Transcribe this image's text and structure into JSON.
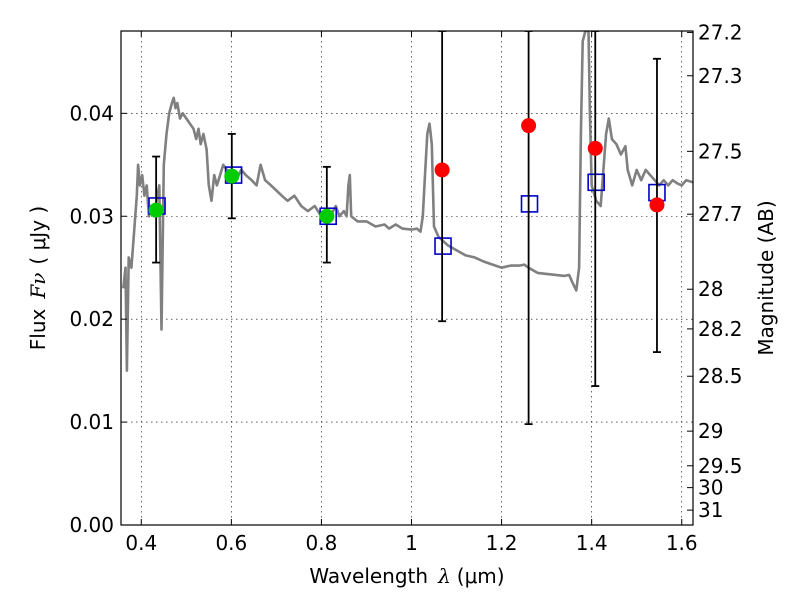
{
  "chart_data": {
    "type": "scatter",
    "xlabel_text": "Wavelength",
    "xlabel_symbol": "λ",
    "xlabel_unit": "(μm)",
    "ylabel_text": "Flux",
    "ylabel_symbol": "Fν",
    "ylabel_unit": "( μJy )",
    "y2label": "Magnitude (AB)",
    "xlim": [
      0.355,
      1.625
    ],
    "ylim": [
      0.0,
      0.048
    ],
    "grid": true,
    "x_ticks": [
      {
        "value": 0.4,
        "label": "0.4"
      },
      {
        "value": 0.6,
        "label": "0.6"
      },
      {
        "value": 0.8,
        "label": "0.8"
      },
      {
        "value": 1.0,
        "label": "1"
      },
      {
        "value": 1.2,
        "label": "1.2"
      },
      {
        "value": 1.4,
        "label": "1.4"
      },
      {
        "value": 1.6,
        "label": "1.6"
      }
    ],
    "y_ticks": [
      {
        "value": 0.0,
        "label": "0.00"
      },
      {
        "value": 0.01,
        "label": "0.01"
      },
      {
        "value": 0.02,
        "label": "0.02"
      },
      {
        "value": 0.03,
        "label": "0.03"
      },
      {
        "value": 0.04,
        "label": "0.04"
      }
    ],
    "y2_ticks": [
      {
        "value": 27.2,
        "label": "27.2"
      },
      {
        "value": 27.3,
        "label": "27.3"
      },
      {
        "value": 27.5,
        "label": "27.5"
      },
      {
        "value": 27.7,
        "label": "27.7"
      },
      {
        "value": 28.0,
        "label": "28"
      },
      {
        "value": 28.2,
        "label": "28.2"
      },
      {
        "value": 28.5,
        "label": "28.5"
      },
      {
        "value": 29.0,
        "label": "29"
      },
      {
        "value": 29.5,
        "label": "29.5"
      },
      {
        "value": 30.0,
        "label": "30"
      },
      {
        "value": 31.0,
        "label": "31"
      }
    ],
    "colors": {
      "sed": "#808080",
      "detections": "#00cc00",
      "upper_points": "#ff0000",
      "model_boxes": "#0000cc",
      "errorbar": "#000000"
    },
    "series": [
      {
        "type": "line",
        "points": [
          [
            0.36,
            0.023
          ],
          [
            0.365,
            0.025
          ],
          [
            0.368,
            0.015
          ],
          [
            0.372,
            0.026
          ],
          [
            0.378,
            0.025
          ],
          [
            0.385,
            0.029
          ],
          [
            0.39,
            0.032
          ],
          [
            0.393,
            0.035
          ],
          [
            0.397,
            0.033
          ],
          [
            0.402,
            0.034
          ],
          [
            0.407,
            0.032
          ],
          [
            0.412,
            0.033
          ],
          [
            0.417,
            0.03
          ],
          [
            0.422,
            0.031
          ],
          [
            0.428,
            0.03
          ],
          [
            0.434,
            0.0315
          ],
          [
            0.44,
            0.033
          ],
          [
            0.445,
            0.019
          ],
          [
            0.45,
            0.035
          ],
          [
            0.456,
            0.038
          ],
          [
            0.462,
            0.04
          ],
          [
            0.468,
            0.041
          ],
          [
            0.472,
            0.0415
          ],
          [
            0.476,
            0.0405
          ],
          [
            0.48,
            0.041
          ],
          [
            0.486,
            0.0395
          ],
          [
            0.492,
            0.04
          ],
          [
            0.5,
            0.0395
          ],
          [
            0.508,
            0.039
          ],
          [
            0.516,
            0.0385
          ],
          [
            0.522,
            0.0375
          ],
          [
            0.527,
            0.0385
          ],
          [
            0.532,
            0.037
          ],
          [
            0.538,
            0.038
          ],
          [
            0.545,
            0.0365
          ],
          [
            0.55,
            0.033
          ],
          [
            0.556,
            0.0315
          ],
          [
            0.562,
            0.034
          ],
          [
            0.568,
            0.033
          ],
          [
            0.575,
            0.034
          ],
          [
            0.582,
            0.035
          ],
          [
            0.59,
            0.0345
          ],
          [
            0.6,
            0.034
          ],
          [
            0.61,
            0.0335
          ],
          [
            0.622,
            0.0345
          ],
          [
            0.632,
            0.034
          ],
          [
            0.645,
            0.0335
          ],
          [
            0.656,
            0.033
          ],
          [
            0.665,
            0.035
          ],
          [
            0.675,
            0.0335
          ],
          [
            0.688,
            0.033
          ],
          [
            0.7,
            0.0325
          ],
          [
            0.712,
            0.032
          ],
          [
            0.725,
            0.0315
          ],
          [
            0.74,
            0.032
          ],
          [
            0.755,
            0.031
          ],
          [
            0.77,
            0.0305
          ],
          [
            0.785,
            0.031
          ],
          [
            0.8,
            0.03
          ],
          [
            0.81,
            0.0305
          ],
          [
            0.82,
            0.03
          ],
          [
            0.832,
            0.031
          ],
          [
            0.84,
            0.03
          ],
          [
            0.85,
            0.0305
          ],
          [
            0.856,
            0.03
          ],
          [
            0.86,
            0.033
          ],
          [
            0.863,
            0.034
          ],
          [
            0.866,
            0.03
          ],
          [
            0.88,
            0.0295
          ],
          [
            0.9,
            0.0295
          ],
          [
            0.92,
            0.029
          ],
          [
            0.94,
            0.0292
          ],
          [
            0.95,
            0.0288
          ],
          [
            0.965,
            0.0292
          ],
          [
            0.98,
            0.0288
          ],
          [
            1.0,
            0.0287
          ],
          [
            1.012,
            0.0288
          ],
          [
            1.02,
            0.0285
          ],
          [
            1.025,
            0.03
          ],
          [
            1.03,
            0.034
          ],
          [
            1.035,
            0.038
          ],
          [
            1.04,
            0.039
          ],
          [
            1.045,
            0.037
          ],
          [
            1.05,
            0.029
          ],
          [
            1.06,
            0.028
          ],
          [
            1.08,
            0.0272
          ],
          [
            1.1,
            0.0267
          ],
          [
            1.12,
            0.0262
          ],
          [
            1.14,
            0.026
          ],
          [
            1.16,
            0.0256
          ],
          [
            1.18,
            0.0253
          ],
          [
            1.2,
            0.025
          ],
          [
            1.22,
            0.0252
          ],
          [
            1.24,
            0.0252
          ],
          [
            1.25,
            0.0253
          ],
          [
            1.26,
            0.025
          ],
          [
            1.28,
            0.0245
          ],
          [
            1.3,
            0.0244
          ],
          [
            1.32,
            0.0243
          ],
          [
            1.34,
            0.0242
          ],
          [
            1.35,
            0.0243
          ],
          [
            1.358,
            0.0235
          ],
          [
            1.366,
            0.0228
          ],
          [
            1.372,
            0.025
          ],
          [
            1.376,
            0.038
          ],
          [
            1.38,
            0.047
          ],
          [
            1.386,
            0.048
          ],
          [
            1.393,
            0.048
          ],
          [
            1.396,
            0.04
          ],
          [
            1.4,
            0.033
          ],
          [
            1.41,
            0.0315
          ],
          [
            1.42,
            0.031
          ],
          [
            1.426,
            0.0345
          ],
          [
            1.432,
            0.038
          ],
          [
            1.438,
            0.0395
          ],
          [
            1.445,
            0.0375
          ],
          [
            1.455,
            0.037
          ],
          [
            1.465,
            0.036
          ],
          [
            1.475,
            0.0368
          ],
          [
            1.48,
            0.0345
          ],
          [
            1.49,
            0.033
          ],
          [
            1.5,
            0.0345
          ],
          [
            1.51,
            0.0335
          ],
          [
            1.52,
            0.0345
          ],
          [
            1.53,
            0.034
          ],
          [
            1.54,
            0.0335
          ],
          [
            1.55,
            0.033
          ],
          [
            1.56,
            0.0335
          ],
          [
            1.57,
            0.033
          ],
          [
            1.58,
            0.0335
          ],
          [
            1.59,
            0.0332
          ],
          [
            1.6,
            0.033
          ],
          [
            1.61,
            0.0335
          ],
          [
            1.625,
            0.0333
          ]
        ]
      },
      {
        "type": "model_boxes",
        "points": [
          [
            0.435,
            0.031
          ],
          [
            0.605,
            0.034
          ],
          [
            0.815,
            0.03
          ],
          [
            1.07,
            0.0271
          ],
          [
            1.262,
            0.0312
          ],
          [
            1.41,
            0.0333
          ],
          [
            1.545,
            0.0323
          ]
        ]
      },
      {
        "type": "errorbars",
        "bars": [
          {
            "x": 0.433,
            "low": 0.0255,
            "high": 0.0358
          },
          {
            "x": 0.601,
            "low": 0.0298,
            "high": 0.038
          },
          {
            "x": 0.812,
            "low": 0.0255,
            "high": 0.0348
          },
          {
            "x": 1.068,
            "low": 0.0198,
            "high": 0.048
          },
          {
            "x": 1.26,
            "low": 0.0098,
            "high": 0.048
          },
          {
            "x": 1.408,
            "low": 0.0135,
            "high": 0.048
          },
          {
            "x": 1.545,
            "low": 0.0168,
            "high": 0.0453
          }
        ]
      },
      {
        "type": "detections",
        "points": [
          [
            0.433,
            0.0306
          ],
          [
            0.601,
            0.0339
          ],
          [
            0.812,
            0.03
          ]
        ]
      },
      {
        "type": "upper_points",
        "points": [
          [
            1.068,
            0.0345
          ],
          [
            1.26,
            0.0388
          ],
          [
            1.408,
            0.0366
          ],
          [
            1.545,
            0.0311
          ]
        ]
      }
    ]
  }
}
